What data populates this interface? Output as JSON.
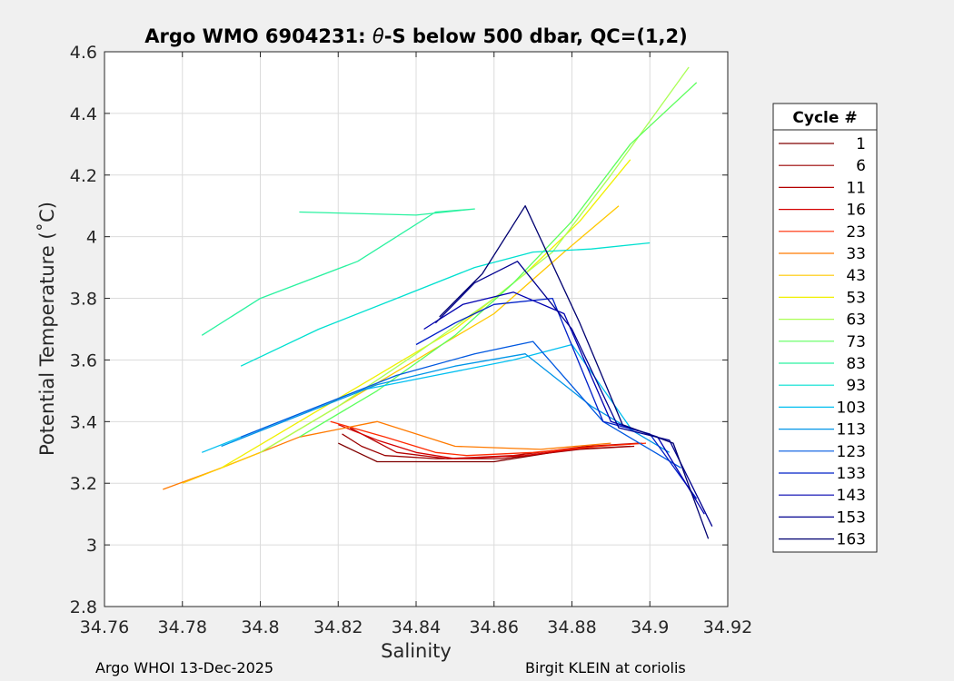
{
  "chart_data": {
    "type": "line",
    "title_prefix": "Argo WMO 6904231: ",
    "title_theta": "θ",
    "title_suffix": "-S below 500 dbar,  QC=(1,2)",
    "xlabel": "Salinity",
    "ylabel": "Potential Temperature (˚C)",
    "xlim": [
      34.76,
      34.92
    ],
    "ylim": [
      2.8,
      4.6
    ],
    "xticks": [
      34.76,
      34.78,
      34.8,
      34.82,
      34.84,
      34.86,
      34.88,
      34.9,
      34.92
    ],
    "xtick_labels": [
      "34.76",
      "34.78",
      "34.8",
      "34.82",
      "34.84",
      "34.86",
      "34.88",
      "34.9",
      "34.92"
    ],
    "yticks": [
      2.8,
      3,
      3.2,
      3.4,
      3.6,
      3.8,
      4,
      4.2,
      4.4,
      4.6
    ],
    "ytick_labels": [
      "2.8",
      "3",
      "3.2",
      "3.4",
      "3.6",
      "3.8",
      "4",
      "4.2",
      "4.4",
      "4.6"
    ],
    "grid": true,
    "legend_title": "Cycle #",
    "legend_placement": "right outside",
    "series": [
      {
        "name": "1",
        "color": "#800000",
        "salinity": [
          34.82,
          34.825,
          34.83,
          34.84,
          34.86,
          34.88,
          34.895
        ],
        "theta": [
          3.33,
          3.3,
          3.27,
          3.27,
          3.27,
          3.31,
          3.32
        ]
      },
      {
        "name": "6",
        "color": "#9a0000",
        "salinity": [
          34.821,
          34.826,
          34.832,
          34.845,
          34.862,
          34.882,
          34.896
        ],
        "theta": [
          3.36,
          3.32,
          3.29,
          3.28,
          3.28,
          3.31,
          3.32
        ]
      },
      {
        "name": "11",
        "color": "#b40000",
        "salinity": [
          34.823,
          34.829,
          34.835,
          34.848,
          34.865,
          34.884,
          34.897
        ],
        "theta": [
          3.38,
          3.34,
          3.3,
          3.28,
          3.29,
          3.32,
          3.33
        ]
      },
      {
        "name": "16",
        "color": "#d40000",
        "salinity": [
          34.82,
          34.83,
          34.84,
          34.85,
          34.868,
          34.886,
          34.898
        ],
        "theta": [
          3.39,
          3.34,
          3.3,
          3.28,
          3.29,
          3.32,
          3.33
        ]
      },
      {
        "name": "23",
        "color": "#ff2a00",
        "salinity": [
          34.818,
          34.832,
          34.845,
          34.853,
          34.87,
          34.887,
          34.899
        ],
        "theta": [
          3.4,
          3.35,
          3.3,
          3.29,
          3.3,
          3.32,
          3.33
        ]
      },
      {
        "name": "33",
        "color": "#ff7a00",
        "salinity": [
          34.775,
          34.79,
          34.81,
          34.83,
          34.85,
          34.872,
          34.89
        ],
        "theta": [
          3.18,
          3.25,
          3.35,
          3.4,
          3.32,
          3.31,
          3.33
        ]
      },
      {
        "name": "43",
        "color": "#ffc800",
        "salinity": [
          34.78,
          34.8,
          34.82,
          34.84,
          34.86,
          34.878,
          34.892
        ],
        "theta": [
          3.2,
          3.3,
          3.45,
          3.6,
          3.75,
          3.95,
          4.1
        ]
      },
      {
        "name": "53",
        "color": "#f0f000",
        "salinity": [
          34.79,
          34.81,
          34.83,
          34.85,
          34.868,
          34.882,
          34.895
        ],
        "theta": [
          3.25,
          3.4,
          3.55,
          3.7,
          3.88,
          4.05,
          4.25
        ]
      },
      {
        "name": "63",
        "color": "#aaff55",
        "salinity": [
          34.8,
          34.82,
          34.84,
          34.86,
          34.875,
          34.89,
          34.91
        ],
        "theta": [
          3.3,
          3.45,
          3.62,
          3.8,
          3.95,
          4.2,
          4.55
        ]
      },
      {
        "name": "73",
        "color": "#5cff5c",
        "salinity": [
          34.81,
          34.83,
          34.85,
          34.865,
          34.88,
          34.895,
          34.912
        ],
        "theta": [
          3.35,
          3.5,
          3.68,
          3.85,
          4.05,
          4.3,
          4.5
        ]
      },
      {
        "name": "83",
        "color": "#2af2a0",
        "salinity": [
          34.785,
          34.8,
          34.825,
          34.845,
          34.855,
          34.84,
          34.81
        ],
        "theta": [
          3.68,
          3.8,
          3.92,
          4.08,
          4.09,
          4.07,
          4.08
        ]
      },
      {
        "name": "93",
        "color": "#00e0d0",
        "salinity": [
          34.795,
          34.815,
          34.835,
          34.855,
          34.87,
          34.885,
          34.9
        ],
        "theta": [
          3.58,
          3.7,
          3.8,
          3.9,
          3.95,
          3.96,
          3.98
        ]
      },
      {
        "name": "103",
        "color": "#00bff0",
        "salinity": [
          34.785,
          34.805,
          34.825,
          34.845,
          34.865,
          34.88,
          34.895
        ],
        "theta": [
          3.3,
          3.4,
          3.5,
          3.55,
          3.6,
          3.65,
          3.38
        ]
      },
      {
        "name": "113",
        "color": "#0095e8",
        "salinity": [
          34.79,
          34.81,
          34.83,
          34.85,
          34.868,
          34.885,
          34.905
        ],
        "theta": [
          3.32,
          3.42,
          3.52,
          3.58,
          3.62,
          3.45,
          3.3
        ]
      },
      {
        "name": "123",
        "color": "#0058e0",
        "salinity": [
          34.795,
          34.815,
          34.835,
          34.855,
          34.87,
          34.888,
          34.908
        ],
        "theta": [
          3.35,
          3.45,
          3.55,
          3.62,
          3.66,
          3.4,
          3.25
        ]
      },
      {
        "name": "133",
        "color": "#0020c8",
        "salinity": [
          34.84,
          34.85,
          34.86,
          34.875,
          34.888,
          34.9,
          34.912
        ],
        "theta": [
          3.65,
          3.72,
          3.78,
          3.8,
          3.4,
          3.36,
          3.15
        ]
      },
      {
        "name": "143",
        "color": "#0000b0",
        "salinity": [
          34.842,
          34.852,
          34.865,
          34.878,
          34.89,
          34.902,
          34.914
        ],
        "theta": [
          3.7,
          3.78,
          3.82,
          3.75,
          3.4,
          3.35,
          3.1
        ]
      },
      {
        "name": "153",
        "color": "#00008f",
        "salinity": [
          34.845,
          34.855,
          34.866,
          34.88,
          34.892,
          34.905,
          34.916
        ],
        "theta": [
          3.72,
          3.85,
          3.92,
          3.7,
          3.38,
          3.34,
          3.06
        ]
      },
      {
        "name": "163",
        "color": "#000070",
        "salinity": [
          34.846,
          34.857,
          34.868,
          34.882,
          34.893,
          34.906,
          34.915
        ],
        "theta": [
          3.74,
          3.88,
          4.1,
          3.72,
          3.39,
          3.33,
          3.02
        ]
      }
    ]
  },
  "footer": {
    "left": "Argo WHOI 13-Dec-2025",
    "right": "Birgit KLEIN at coriolis"
  }
}
